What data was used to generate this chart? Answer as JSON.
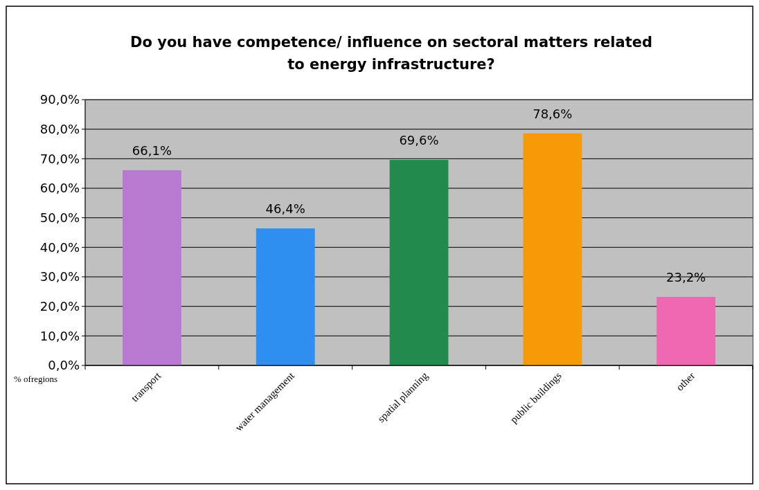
{
  "chart_data": {
    "type": "bar",
    "title": "Do you have competence/ influence on sectoral matters related to energy infrastructure?",
    "categories": [
      "transport",
      "water management",
      "spatial planning",
      "public buildings",
      "other"
    ],
    "values": [
      66.1,
      46.4,
      69.6,
      78.6,
      23.2
    ],
    "colors": [
      "#b87ad0",
      "#2f8ff0",
      "#238a4e",
      "#f79a08",
      "#f068b0"
    ],
    "value_labels": [
      "66,1%",
      "46,4%",
      "69,6%",
      "78,6%",
      "23,2%"
    ],
    "ylim": [
      0,
      90
    ],
    "yticks": [
      {
        "value": 0,
        "label": "0,0%"
      },
      {
        "value": 10,
        "label": "10,0%"
      },
      {
        "value": 20,
        "label": "20,0%"
      },
      {
        "value": 30,
        "label": "30,0%"
      },
      {
        "value": 40,
        "label": "40,0%"
      },
      {
        "value": 50,
        "label": "50,0%"
      },
      {
        "value": 60,
        "label": "60,0%"
      },
      {
        "value": 70,
        "label": "70,0%"
      },
      {
        "value": 80,
        "label": "80,0%"
      },
      {
        "value": 90,
        "label": "90,0%"
      }
    ],
    "grid": "y",
    "annotations": [
      "% ofregions"
    ]
  }
}
